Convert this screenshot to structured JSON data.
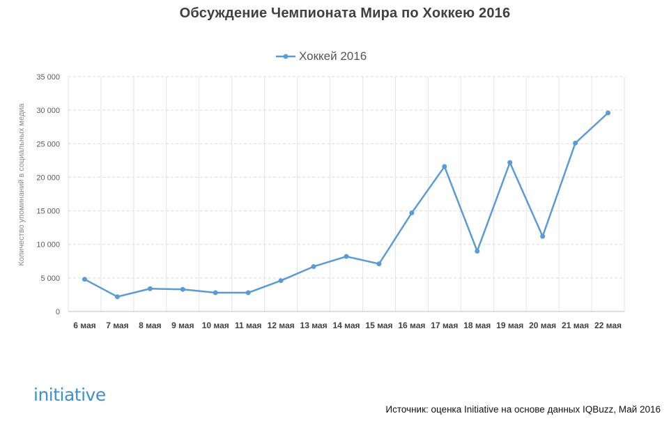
{
  "chart_data": {
    "type": "line",
    "title": "Обсуждение Чемпионата Мира по Хоккею 2016",
    "ylabel": "Количество упоминаний в социальных медиа",
    "xlabel": "",
    "ylim": [
      0,
      35000
    ],
    "yticks": [
      "0",
      "5 000",
      "10 000",
      "15 000",
      "20 000",
      "25 000",
      "30 000",
      "35 000"
    ],
    "categories": [
      "6 мая",
      "7 мая",
      "8 мая",
      "9 мая",
      "10 мая",
      "11 мая",
      "12 мая",
      "13 мая",
      "14 мая",
      "15 мая",
      "16 мая",
      "17 мая",
      "18 мая",
      "19 мая",
      "20 мая",
      "21 мая",
      "22 мая"
    ],
    "series": [
      {
        "name": "Хоккей 2016",
        "values": [
          4800,
          2200,
          3400,
          3300,
          2800,
          2800,
          4600,
          6700,
          8200,
          7100,
          14700,
          21600,
          9000,
          22200,
          11200,
          25100,
          29600
        ]
      }
    ],
    "legend_position": "top",
    "grid": "horizontal dashed and vertical category lines",
    "colors": {
      "series": "#5b9bd5",
      "grid": "#d9d9d9"
    }
  },
  "footer": {
    "logo": "initiative",
    "source": "Источник: оценка Initiative на основе данных IQBuzz, Май 2016"
  }
}
